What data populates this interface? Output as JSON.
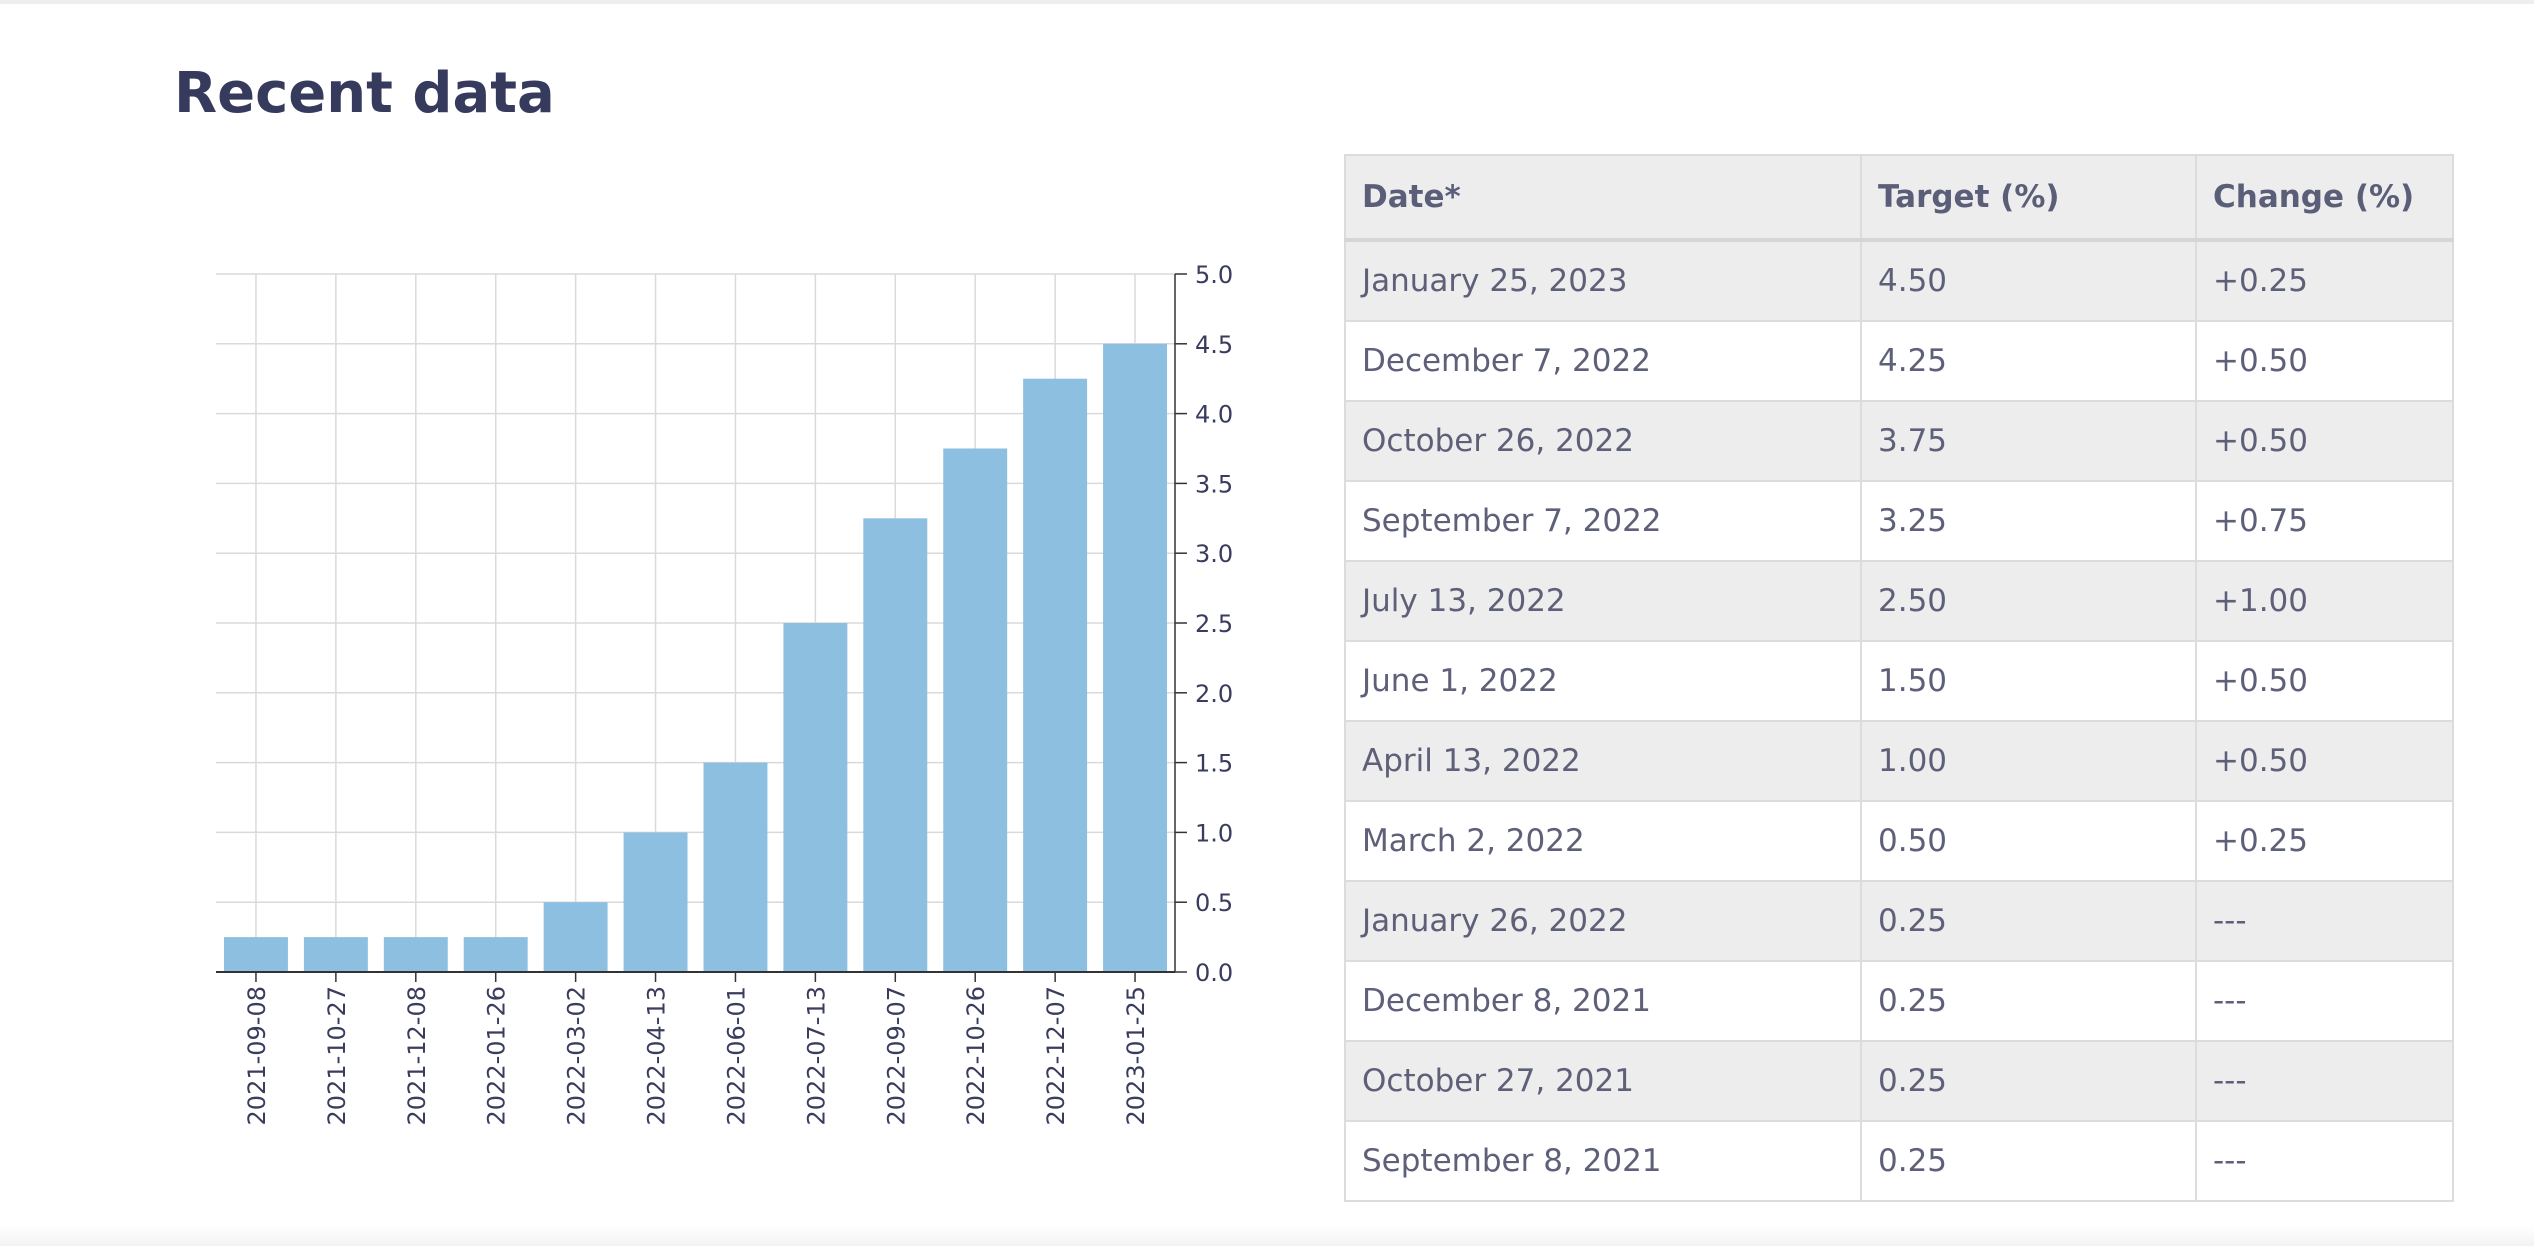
{
  "page": {
    "title": "Recent data"
  },
  "table": {
    "headers": [
      "Date*",
      "Target (%)",
      "Change (%)"
    ],
    "rows": [
      [
        "January 25, 2023",
        "4.50",
        "+0.25"
      ],
      [
        "December 7, 2022",
        "4.25",
        "+0.50"
      ],
      [
        "October 26, 2022",
        "3.75",
        "+0.50"
      ],
      [
        "September 7, 2022",
        "3.25",
        "+0.75"
      ],
      [
        "July 13, 2022",
        "2.50",
        "+1.00"
      ],
      [
        "June 1, 2022",
        "1.50",
        "+0.50"
      ],
      [
        "April 13, 2022",
        "1.00",
        "+0.50"
      ],
      [
        "March 2, 2022",
        "0.50",
        "+0.25"
      ],
      [
        "January 26, 2022",
        "0.25",
        "---"
      ],
      [
        "December 8, 2021",
        "0.25",
        "---"
      ],
      [
        "October 27, 2021",
        "0.25",
        "---"
      ],
      [
        "September 8, 2021",
        "0.25",
        "---"
      ]
    ]
  },
  "chart_data": {
    "type": "bar",
    "categories": [
      "2021-09-08",
      "2021-10-27",
      "2021-12-08",
      "2022-01-26",
      "2022-03-02",
      "2022-04-13",
      "2022-06-01",
      "2022-07-13",
      "2022-09-07",
      "2022-10-26",
      "2022-12-07",
      "2023-01-25"
    ],
    "values": [
      0.25,
      0.25,
      0.25,
      0.25,
      0.5,
      1.0,
      1.5,
      2.5,
      3.25,
      3.75,
      4.25,
      4.5
    ],
    "yticks": [
      "0.0",
      "0.5",
      "1.0",
      "1.5",
      "2.0",
      "2.5",
      "3.0",
      "3.5",
      "4.0",
      "4.5",
      "5.0"
    ],
    "ylim": [
      0,
      5
    ],
    "y_axis_side": "right",
    "grid": true,
    "bar_color": "#8dbfe0",
    "grid_color": "#dadada",
    "axis_color": "#333333"
  }
}
